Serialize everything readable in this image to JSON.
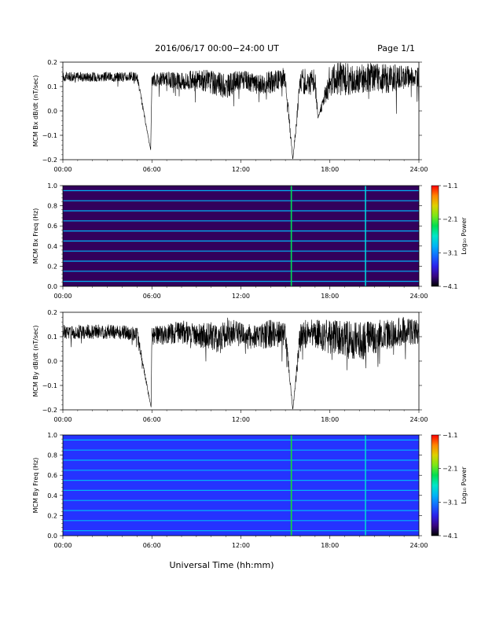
{
  "header": {
    "title": "2016/06/17   00:00−24:00 UT",
    "page": "Page 1/1"
  },
  "xaxis": {
    "label": "Universal Time (hh:mm)",
    "range": [
      0,
      24
    ],
    "ticks": [
      0,
      6,
      12,
      18,
      24
    ],
    "tick_labels": [
      "00:00",
      "06:00",
      "12:00",
      "18:00",
      "24:00"
    ]
  },
  "chart_data": [
    {
      "type": "line",
      "ylabel": "MCM Bx dB/dt (nT/sec)",
      "ylim": [
        -0.2,
        0.2
      ],
      "yticks": [
        -0.2,
        -0.1,
        0.0,
        0.1,
        0.2
      ],
      "ytick_labels": [
        "−0.2",
        "−0.1",
        "0.0",
        "0.1",
        "0.2"
      ],
      "x": [
        0,
        1,
        2,
        3,
        4,
        5,
        5.92,
        6,
        7,
        8,
        9,
        10,
        10.5,
        11,
        12,
        13,
        14,
        15,
        15.5,
        16,
        17,
        17.2,
        18,
        19,
        20,
        21,
        22,
        23,
        24
      ],
      "y": [
        0.14,
        0.14,
        0.14,
        0.14,
        0.14,
        0.14,
        -0.16,
        0.13,
        0.13,
        0.12,
        0.13,
        0.12,
        0.11,
        0.1,
        0.13,
        0.11,
        0.12,
        0.14,
        -0.2,
        0.12,
        0.12,
        -0.03,
        0.13,
        0.13,
        0.13,
        0.14,
        0.13,
        0.14,
        0.14
      ],
      "noise_amplitude": [
        0.02,
        0.02,
        0.02,
        0.02,
        0.02,
        0.02,
        0,
        0.03,
        0.03,
        0.04,
        0.04,
        0.05,
        0.05,
        0.05,
        0.04,
        0.04,
        0.05,
        0.04,
        0,
        0.05,
        0.06,
        0,
        0.07,
        0.07,
        0.06,
        0.06,
        0.06,
        0.05,
        0.04
      ],
      "color": "#000000"
    },
    {
      "type": "heatmap",
      "ylabel": "MCM Bx Freq (Hz)",
      "ylim": [
        0,
        1.0
      ],
      "yticks": [
        0.0,
        0.2,
        0.4,
        0.6,
        0.8,
        1.0
      ],
      "ytick_labels": [
        "0.0",
        "0.2",
        "0.4",
        "0.6",
        "0.8",
        "1.0"
      ],
      "colorbar": {
        "label": "Log₁₀ Power",
        "min": -4.1,
        "max": -1.1,
        "ticks": [
          -1.1,
          -2.1,
          -3.1,
          -4.1
        ],
        "tick_labels": [
          "−1.1",
          "−2.1",
          "−3.1",
          "−4.1"
        ]
      },
      "line_frequencies": [
        0.05,
        0.15,
        0.25,
        0.35,
        0.45,
        0.55,
        0.65,
        0.75,
        0.85,
        0.95
      ],
      "background_log_power": -3.9,
      "line_log_power": -2.9,
      "low_freq_log_power": -2.6,
      "vertical_events": [
        {
          "time": 15.4,
          "log_power": -2.3
        },
        {
          "time": 20.4,
          "log_power": -2.7
        }
      ]
    },
    {
      "type": "line",
      "ylabel": "MCM By dB/dt (nT/sec)",
      "ylim": [
        -0.2,
        0.2
      ],
      "yticks": [
        -0.2,
        -0.1,
        0.0,
        0.1,
        0.2
      ],
      "ytick_labels": [
        "−0.2",
        "−0.1",
        "0.0",
        "0.1",
        "0.2"
      ],
      "x": [
        0,
        1,
        2,
        3,
        4,
        5,
        5.95,
        6,
        7,
        8,
        9,
        10,
        10.5,
        11,
        12,
        13,
        14,
        15,
        15.5,
        16,
        17,
        18,
        19,
        20,
        21,
        22,
        23,
        24
      ],
      "y": [
        0.12,
        0.12,
        0.12,
        0.12,
        0.12,
        0.11,
        -0.19,
        0.1,
        0.11,
        0.12,
        0.11,
        0.1,
        0.08,
        0.12,
        0.11,
        0.1,
        0.11,
        0.11,
        -0.2,
        0.11,
        0.11,
        0.1,
        0.09,
        0.08,
        0.1,
        0.11,
        0.12,
        0.12
      ],
      "noise_amplitude": [
        0.03,
        0.03,
        0.03,
        0.03,
        0.03,
        0.03,
        0,
        0.04,
        0.04,
        0.05,
        0.05,
        0.06,
        0.06,
        0.06,
        0.05,
        0.05,
        0.06,
        0.05,
        0,
        0.06,
        0.06,
        0.07,
        0.08,
        0.08,
        0.07,
        0.06,
        0.06,
        0.05
      ],
      "color": "#000000"
    },
    {
      "type": "heatmap",
      "ylabel": "MCM By Freq (Hz)",
      "ylim": [
        0,
        1.0
      ],
      "yticks": [
        0.0,
        0.2,
        0.4,
        0.6,
        0.8,
        1.0
      ],
      "ytick_labels": [
        "0.0",
        "0.2",
        "0.4",
        "0.6",
        "0.8",
        "1.0"
      ],
      "colorbar": {
        "label": "Log₁₀ Power",
        "min": -4.1,
        "max": -1.1,
        "ticks": [
          -1.1,
          -2.1,
          -3.1,
          -4.1
        ],
        "tick_labels": [
          "−1.1",
          "−2.1",
          "−3.1",
          "−4.1"
        ]
      },
      "line_frequencies": [
        0.05,
        0.15,
        0.25,
        0.35,
        0.45,
        0.55,
        0.65,
        0.75,
        0.85,
        0.95
      ],
      "background_log_power": -3.4,
      "line_log_power": -2.9,
      "low_freq_log_power": -2.5,
      "vertical_events": [
        {
          "time": 15.4,
          "log_power": -2.2
        },
        {
          "time": 20.4,
          "log_power": -2.7
        }
      ]
    }
  ]
}
